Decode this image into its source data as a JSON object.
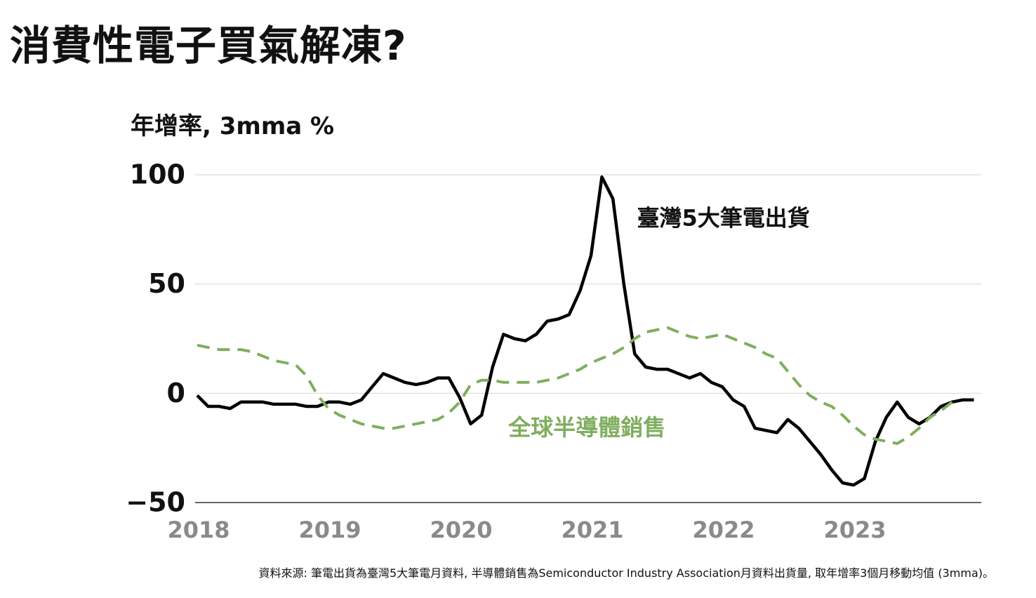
{
  "page": {
    "title": "消費性電子買氣解凍?",
    "unit_label": "年增率, 3mma %",
    "source": "資料來源: 筆電出貨為臺灣5大筆電月資料, 半導體銷售為Semiconductor Industry Association月資料出貨量, 取年增率3個月移動均值 (3mma)。"
  },
  "colors": {
    "laptop": "#000000",
    "semi": "#7fae5e",
    "grid": "#d9d9d9",
    "axis": "#333333",
    "xtick": "#8a8a8a"
  },
  "chart_data": {
    "type": "line",
    "title": "消費性電子買氣解凍?",
    "ylabel": "年增率, 3mma %",
    "ylim": [
      -50,
      100
    ],
    "yticks": [
      {
        "value": 100,
        "label": "100"
      },
      {
        "value": 50,
        "label": "50"
      },
      {
        "value": 0,
        "label": "0"
      },
      {
        "value": -50,
        "label": "−50"
      }
    ],
    "xticks": [
      {
        "value": 2018,
        "label": "2018"
      },
      {
        "value": 2019,
        "label": "2019"
      },
      {
        "value": 2020,
        "label": "2020"
      },
      {
        "value": 2021,
        "label": "2021"
      },
      {
        "value": 2022,
        "label": "2022"
      },
      {
        "value": 2023,
        "label": "2023"
      }
    ],
    "grid": true,
    "series": [
      {
        "name": "臺灣5大筆電出貨",
        "style": "solid",
        "color": "#000000",
        "label_anchor": {
          "x": 2021.35,
          "y": 80
        },
        "x": [
          2018.0,
          2018.083,
          2018.167,
          2018.25,
          2018.333,
          2018.417,
          2018.5,
          2018.583,
          2018.667,
          2018.75,
          2018.833,
          2018.917,
          2019.0,
          2019.083,
          2019.167,
          2019.25,
          2019.333,
          2019.417,
          2019.5,
          2019.583,
          2019.667,
          2019.75,
          2019.833,
          2019.917,
          2020.0,
          2020.083,
          2020.167,
          2020.25,
          2020.333,
          2020.417,
          2020.5,
          2020.583,
          2020.667,
          2020.75,
          2020.833,
          2020.917,
          2021.0,
          2021.083,
          2021.167,
          2021.25,
          2021.333,
          2021.417,
          2021.5,
          2021.583,
          2021.667,
          2021.75,
          2021.833,
          2021.917,
          2022.0,
          2022.083,
          2022.167,
          2022.25,
          2022.333,
          2022.417,
          2022.5,
          2022.583,
          2022.667,
          2022.75,
          2022.833,
          2022.917,
          2023.0,
          2023.083,
          2023.167,
          2023.25,
          2023.333,
          2023.417,
          2023.5,
          2023.583,
          2023.667,
          2023.75,
          2023.833,
          2023.917
        ],
        "values": [
          -1,
          -6,
          -6,
          -7,
          -4,
          -4,
          -4,
          -5,
          -5,
          -5,
          -6,
          -6,
          -4,
          -4,
          -5,
          -3,
          3,
          9,
          7,
          5,
          4,
          5,
          7,
          7,
          -2,
          -14,
          -10,
          12,
          27,
          25,
          24,
          27,
          33,
          34,
          36,
          47,
          63,
          99,
          89,
          50,
          18,
          12,
          11,
          11,
          9,
          7,
          9,
          5,
          3,
          -3,
          -6,
          -16,
          -17,
          -18,
          -12,
          -16,
          -22,
          -28,
          -35,
          -41,
          -42,
          -39,
          -22,
          -11,
          -4,
          -11,
          -14,
          -11,
          -6,
          -4,
          -3,
          -3
        ]
      },
      {
        "name": "全球半導體銷售",
        "style": "dashed",
        "color": "#7fae5e",
        "label_anchor": {
          "x": 2020.37,
          "y": -16
        },
        "x": [
          2018.0,
          2018.083,
          2018.167,
          2018.25,
          2018.333,
          2018.417,
          2018.5,
          2018.583,
          2018.667,
          2018.75,
          2018.833,
          2018.917,
          2019.0,
          2019.083,
          2019.167,
          2019.25,
          2019.333,
          2019.417,
          2019.5,
          2019.583,
          2019.667,
          2019.75,
          2019.833,
          2019.917,
          2020.0,
          2020.083,
          2020.167,
          2020.25,
          2020.333,
          2020.417,
          2020.5,
          2020.583,
          2020.667,
          2020.75,
          2020.833,
          2020.917,
          2021.0,
          2021.083,
          2021.167,
          2021.25,
          2021.333,
          2021.417,
          2021.5,
          2021.583,
          2021.667,
          2021.75,
          2021.833,
          2021.917,
          2022.0,
          2022.083,
          2022.167,
          2022.25,
          2022.333,
          2022.417,
          2022.5,
          2022.583,
          2022.667,
          2022.75,
          2022.833,
          2022.917,
          2023.0,
          2023.083,
          2023.167,
          2023.25,
          2023.333,
          2023.417,
          2023.5,
          2023.583,
          2023.667,
          2023.75
        ],
        "values": [
          22,
          21,
          20,
          20,
          20,
          19,
          17,
          15,
          14,
          13,
          8,
          -1,
          -7,
          -10,
          -12,
          -14,
          -15,
          -16,
          -16,
          -15,
          -14,
          -13,
          -12,
          -9,
          -4,
          4,
          6,
          6,
          5,
          5,
          5,
          5,
          6,
          7,
          9,
          11,
          14,
          16,
          18,
          21,
          25,
          28,
          29,
          30,
          28,
          26,
          25,
          26,
          27,
          25,
          23,
          21,
          18,
          16,
          10,
          4,
          -1,
          -4,
          -6,
          -10,
          -15,
          -19,
          -21,
          -22,
          -23,
          -20,
          -16,
          -11,
          -8,
          -4
        ]
      }
    ]
  }
}
